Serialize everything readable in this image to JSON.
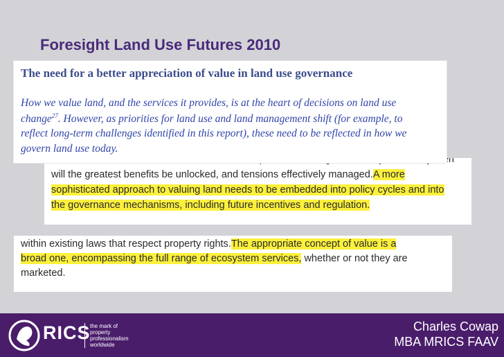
{
  "title": "Foresight Land Use Futures 2010",
  "excerpts": [
    {
      "heading": "The need for a better appreciation of value in land use governance",
      "lines": [
        [
          {
            "text": "How we value land, and the services it provides, is at the heart of decisions on land use"
          }
        ],
        [
          {
            "text": "change"
          },
          {
            "text": "27",
            "sup": true
          },
          {
            "text": ". However, as priorities for land use and land management shift (for example, to"
          }
        ],
        [
          {
            "text": "reflect long-term challenges identified in this report), these need to be reflected in how we"
          }
        ],
        [
          {
            "text": "govern land use today."
          }
        ]
      ]
    },
    {
      "lines": [
        [
          {
            "text": "use sectors — to reflect a much broader concept of the value generated by land. Only then"
          }
        ],
        [
          {
            "text": "will the greatest benefits be unlocked, and tensions effectively managed."
          },
          {
            "text": "A more",
            "highlight": true
          }
        ],
        [
          {
            "text": "sophisticated approach to valuing land needs to be embedded into policy cycles and into",
            "highlight": true
          }
        ],
        [
          {
            "text": "the governance mechanisms, including future incentives and regulation.",
            "highlight": true
          }
        ]
      ]
    },
    {
      "lines": [
        [
          {
            "text": "within existing laws that respect property rights."
          },
          {
            "text": "The appropriate concept of value is a",
            "highlight": true
          }
        ],
        [
          {
            "text": "broad one, encompassing the full range of ecosystem services,",
            "highlight": true
          },
          {
            "text": " whether or not they are"
          }
        ],
        [
          {
            "text": "marketed."
          }
        ]
      ]
    }
  ],
  "footer": {
    "logo": "RICS",
    "tagline": [
      "the mark of",
      "property",
      "professionalism",
      "worldwide"
    ],
    "presenter": "Charles Cowap",
    "credentials": "MBA MRICS FAAV"
  }
}
